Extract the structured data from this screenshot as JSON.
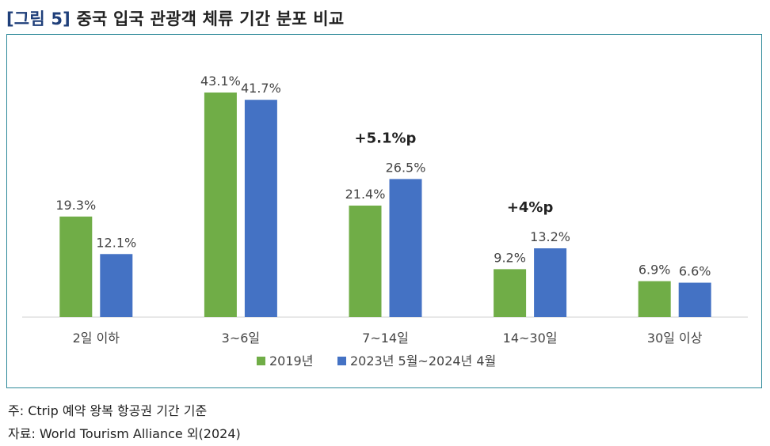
{
  "header": {
    "figure_label": "[그림 5]",
    "title": "중국 입국 관광객 체류 기간 분포 비교"
  },
  "chart_data": {
    "type": "bar",
    "categories": [
      "2일 이하",
      "3~6일",
      "7~14일",
      "14~30일",
      "30일 이상"
    ],
    "series": [
      {
        "name": "2019년",
        "values": [
          19.3,
          43.1,
          21.4,
          9.2,
          6.9
        ],
        "labels": [
          "19.3%",
          "43.1%",
          "21.4%",
          "9.2%",
          "6.9%"
        ],
        "color": "#70ad47"
      },
      {
        "name": "2023년 5월~2024년 4월",
        "values": [
          12.1,
          41.7,
          26.5,
          13.2,
          6.6
        ],
        "labels": [
          "12.1%",
          "41.7%",
          "26.5%",
          "13.2%",
          "6.6%"
        ],
        "color": "#4472c4"
      }
    ],
    "annotations": [
      {
        "category": "7~14일",
        "text": "+5.1%p"
      },
      {
        "category": "14~30일",
        "text": "+4%p"
      }
    ],
    "ylim": [
      0,
      43.1
    ],
    "legend": "bottom-center",
    "grid": false
  },
  "footnotes": {
    "note": "주: Ctrip 예약 왕복 항공권 기간 기준",
    "source": "자료: World Tourism Alliance 외(2024)"
  }
}
